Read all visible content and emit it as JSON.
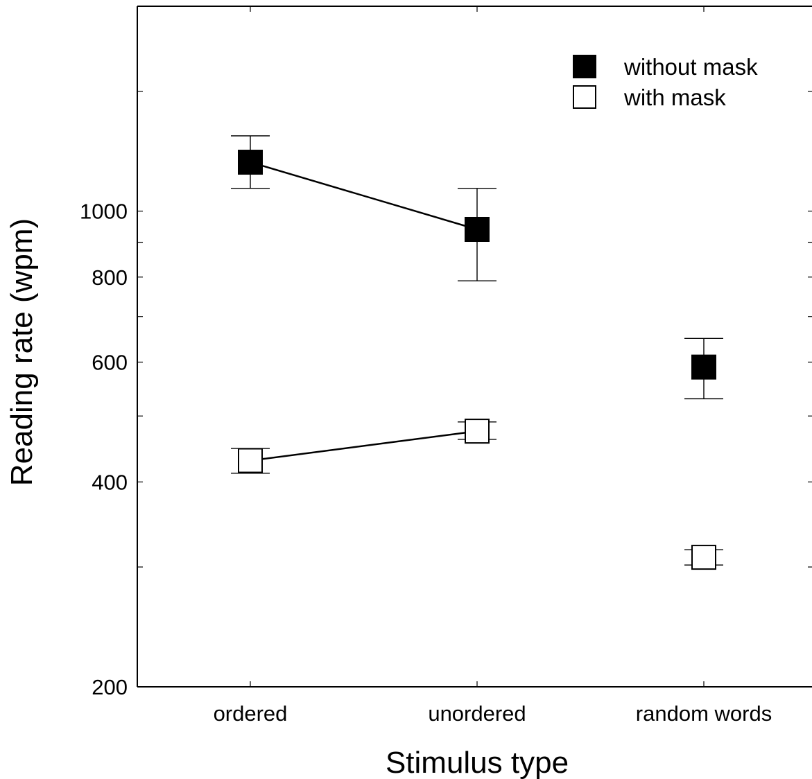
{
  "chart_data": {
    "type": "line",
    "title": "",
    "xlabel": "Stimulus type",
    "ylabel": "Reading rate (wpm)",
    "y_scale": "log",
    "ylim": [
      200,
      2000
    ],
    "categories": [
      "ordered",
      "unordered",
      "random words"
    ],
    "y_ticks_labeled": [
      200,
      400,
      600,
      800,
      1000
    ],
    "y_ticks_minor": [
      300,
      500,
      700,
      900,
      1500
    ],
    "grid": false,
    "legend_position": "top-right",
    "series": [
      {
        "name": "without mask",
        "marker": "filled-square",
        "color": "#000000",
        "values": [
          1180,
          940,
          590
        ],
        "err_low": [
          1080,
          790,
          530
        ],
        "err_high": [
          1290,
          1080,
          650
        ],
        "connected": [
          true,
          true,
          false
        ]
      },
      {
        "name": "with mask",
        "marker": "open-square",
        "color": "#000000",
        "values": [
          430,
          475,
          310
        ],
        "err_low": [
          412,
          462,
          302
        ],
        "err_high": [
          448,
          490,
          318
        ],
        "connected": [
          true,
          true,
          false
        ]
      }
    ]
  }
}
